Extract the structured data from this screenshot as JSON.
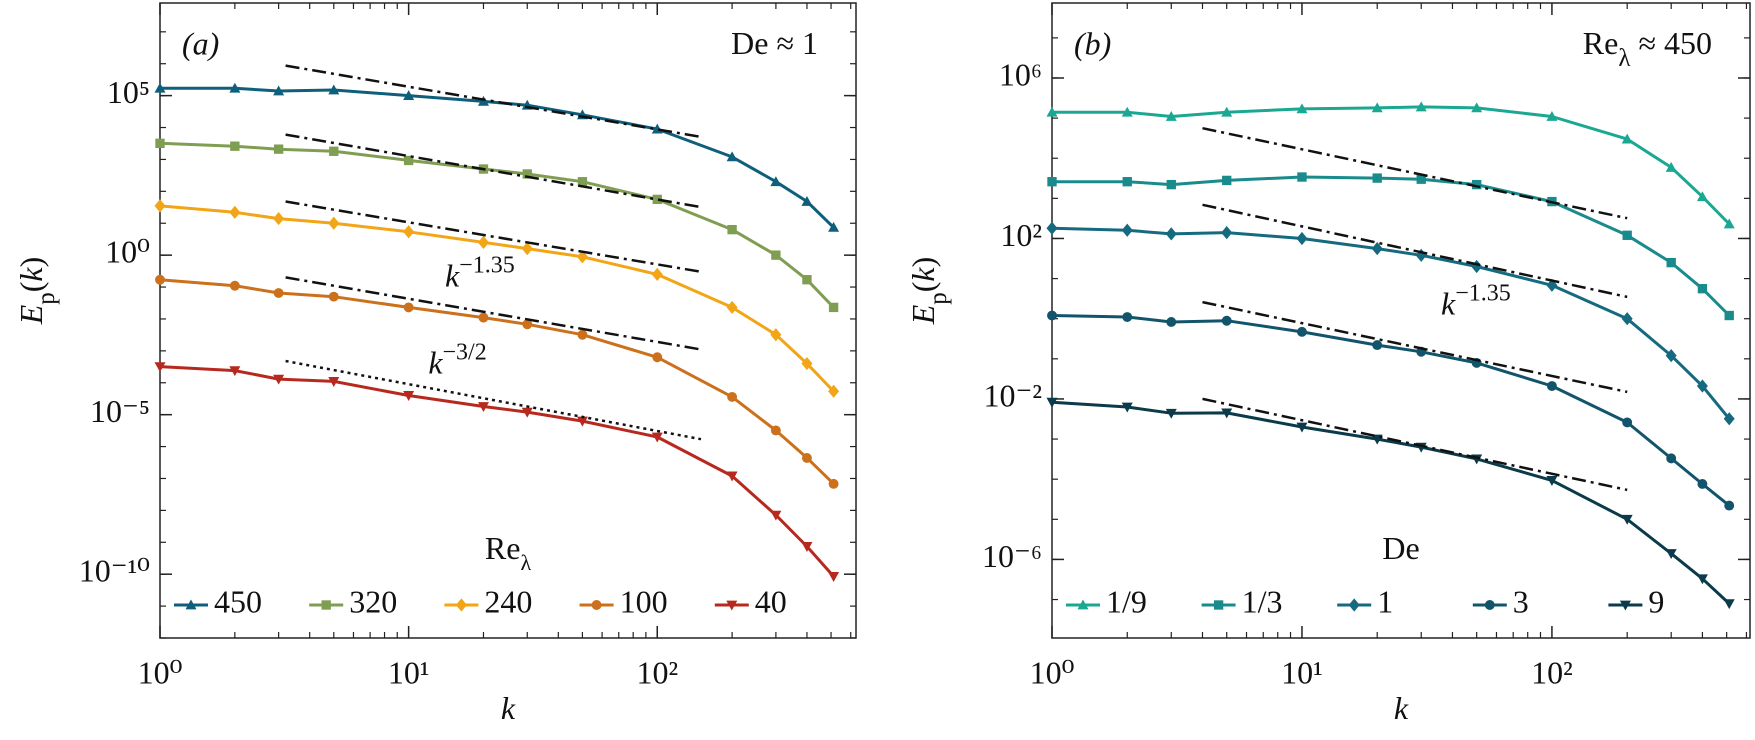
{
  "chart_data": [
    {
      "type": "line",
      "panel_label": "(a)",
      "title": [
        {
          "t": "De ≈ 1"
        }
      ],
      "xlabel": [
        {
          "t": "k",
          "italic": true
        }
      ],
      "ylabel": [
        {
          "t": "E",
          "italic": true
        },
        {
          "t": "p",
          "sub": true
        },
        {
          "t": "("
        },
        {
          "t": "k",
          "italic": true
        },
        {
          "t": ")"
        }
      ],
      "xscale": "log",
      "yscale": "log",
      "xlim": [
        1,
        630
      ],
      "ylim": [
        1e-12,
        80000000.0
      ],
      "xticks": [
        {
          "value": 1,
          "label": "10⁰"
        },
        {
          "value": 10,
          "label": "10¹"
        },
        {
          "value": 100,
          "label": "10²"
        }
      ],
      "yticks": [
        {
          "value": 1e-10,
          "label": "10⁻¹⁰"
        },
        {
          "value": 1e-05,
          "label": "10⁻⁵"
        },
        {
          "value": 1,
          "label": "10⁰"
        },
        {
          "value": 100000.0,
          "label": "10⁵"
        }
      ],
      "legend": "bottom",
      "legend_title": [
        {
          "t": "Re"
        },
        {
          "t": "λ",
          "sub": true
        }
      ],
      "x": [
        1,
        2,
        3,
        5,
        10,
        20,
        30,
        50,
        100,
        200,
        300,
        400,
        512
      ],
      "series": [
        {
          "name": "450",
          "color": "#0e5f7b",
          "marker": "triangle-up",
          "values": [
            170000.0,
            170000.0,
            140000.0,
            150000.0,
            100000.0,
            66000.0,
            50000.0,
            25000.0,
            8900.0,
            1200.0,
            200,
            48,
            7.4
          ]
        },
        {
          "name": "320",
          "color": "#7f9e51",
          "marker": "square",
          "values": [
            3200.0,
            2600.0,
            2100.0,
            1800.0,
            930,
            500,
            350,
            200,
            56,
            6.3,
            1,
            0.17,
            0.023
          ]
        },
        {
          "name": "240",
          "color": "#f2a516",
          "marker": "diamond",
          "values": [
            35,
            22,
            14,
            10,
            5.4,
            2.5,
            1.6,
            0.89,
            0.25,
            0.023,
            0.0032,
            0.0004,
            5.4e-05
          ]
        },
        {
          "name": "100",
          "color": "#cc701c",
          "marker": "circle",
          "values": [
            0.17,
            0.11,
            0.065,
            0.05,
            0.023,
            0.011,
            0.0068,
            0.0032,
            0.00063,
            3.6e-05,
            3.2e-06,
            4.4e-07,
            6.8e-08
          ]
        },
        {
          "name": "40",
          "color": "#b7291f",
          "marker": "triangle-down",
          "values": [
            0.00032,
            0.00024,
            0.00013,
            0.00011,
            4e-05,
            1.8e-05,
            1.2e-05,
            6.3e-06,
            2e-06,
            1.2e-07,
            7.1e-09,
            7.4e-10,
            8.5e-11
          ]
        }
      ],
      "guides": [
        {
          "style": "dashdot",
          "x": [
            3.2,
            150
          ],
          "y": [
            870000.0,
            5100.0
          ]
        },
        {
          "style": "dashdot",
          "x": [
            3.2,
            150
          ],
          "y": [
            6000.0,
            32
          ]
        },
        {
          "style": "dashdot",
          "x": [
            3.2,
            150
          ],
          "y": [
            48,
            0.3
          ]
        },
        {
          "style": "dashdot",
          "x": [
            3.2,
            150
          ],
          "y": [
            0.2,
            0.0011
          ]
        },
        {
          "style": "dotted",
          "x": [
            3.2,
            150
          ],
          "y": [
            0.00048,
            1.7e-06
          ]
        }
      ],
      "annotations": [
        {
          "x": 14,
          "y": 0.17,
          "text": [
            {
              "t": "k",
              "italic": true
            },
            {
              "t": "−1.35",
              "sup": true
            }
          ]
        },
        {
          "x": 12,
          "y": 0.00032,
          "text": [
            {
              "t": "k",
              "italic": true
            },
            {
              "t": "−3/2",
              "sup": true
            }
          ]
        }
      ]
    },
    {
      "type": "line",
      "panel_label": "(b)",
      "title": [
        {
          "t": "Re"
        },
        {
          "t": "λ",
          "sub": true
        },
        {
          "t": " ≈ 450"
        }
      ],
      "xlabel": [
        {
          "t": "k",
          "italic": true
        }
      ],
      "ylabel": [
        {
          "t": "E",
          "italic": true
        },
        {
          "t": "p",
          "sub": true
        },
        {
          "t": "("
        },
        {
          "t": "k",
          "italic": true
        },
        {
          "t": ")"
        }
      ],
      "xscale": "log",
      "yscale": "log",
      "xlim": [
        1,
        620
      ],
      "ylim": [
        1.1e-08,
        74000000.0
      ],
      "xticks": [
        {
          "value": 1,
          "label": "10⁰"
        },
        {
          "value": 10,
          "label": "10¹"
        },
        {
          "value": 100,
          "label": "10²"
        }
      ],
      "yticks": [
        {
          "value": 1e-06,
          "label": "10⁻⁶"
        },
        {
          "value": 0.01,
          "label": "10⁻²"
        },
        {
          "value": 100,
          "label": "10²"
        },
        {
          "value": 1000000.0,
          "label": "10⁶"
        }
      ],
      "legend": "bottom",
      "legend_title": [
        {
          "t": "De"
        }
      ],
      "x": [
        1,
        2,
        3,
        5,
        10,
        20,
        30,
        50,
        100,
        200,
        300,
        400,
        512
      ],
      "series": [
        {
          "name": "1/9",
          "color": "#1ba892",
          "marker": "triangle-up",
          "values": [
            140000.0,
            140000.0,
            110000.0,
            140000.0,
            170000.0,
            180000.0,
            190000.0,
            180000.0,
            110000.0,
            30000.0,
            5900.0,
            1100.0,
            230
          ]
        },
        {
          "name": "1/3",
          "color": "#1a8b8c",
          "marker": "square",
          "values": [
            2600.0,
            2600.0,
            2200.0,
            2800.0,
            3400.0,
            3200.0,
            3000.0,
            2200.0,
            830,
            120,
            25,
            5.6,
            1.2
          ]
        },
        {
          "name": "1",
          "color": "#166a80",
          "marker": "diamond",
          "values": [
            180,
            160,
            130,
            140,
            100,
            56,
            38,
            20,
            6.8,
            1.0,
            0.12,
            0.021,
            0.0032
          ]
        },
        {
          "name": "3",
          "color": "#12546b",
          "marker": "circle",
          "values": [
            1.2,
            1.1,
            0.83,
            0.89,
            0.47,
            0.22,
            0.15,
            0.079,
            0.021,
            0.0026,
            0.00033,
            7.6e-05,
            2.2e-05
          ]
        },
        {
          "name": "9",
          "color": "#0b3a4a",
          "marker": "triangle-down",
          "values": [
            0.0083,
            0.0063,
            0.0044,
            0.0045,
            0.002,
            0.001,
            0.00063,
            0.00032,
            9.3e-05,
            1e-05,
            1.4e-06,
            3.3e-07,
            7.9e-08
          ]
        }
      ],
      "guides": [
        {
          "style": "dashdot",
          "x": [
            4,
            200
          ],
          "y": [
            56000.0,
            320
          ]
        },
        {
          "style": "dashdot",
          "x": [
            4,
            200
          ],
          "y": [
            690,
            3.5
          ]
        },
        {
          "style": "dashdot",
          "x": [
            4,
            200
          ],
          "y": [
            2.6,
            0.015
          ]
        },
        {
          "style": "dashdot",
          "x": [
            4,
            200
          ],
          "y": [
            0.01,
            5.4e-05
          ]
        }
      ],
      "annotations": [
        {
          "x": 36,
          "y": 1.9,
          "text": [
            {
              "t": "k",
              "italic": true
            },
            {
              "t": "−1.35",
              "sup": true
            }
          ]
        }
      ]
    }
  ]
}
